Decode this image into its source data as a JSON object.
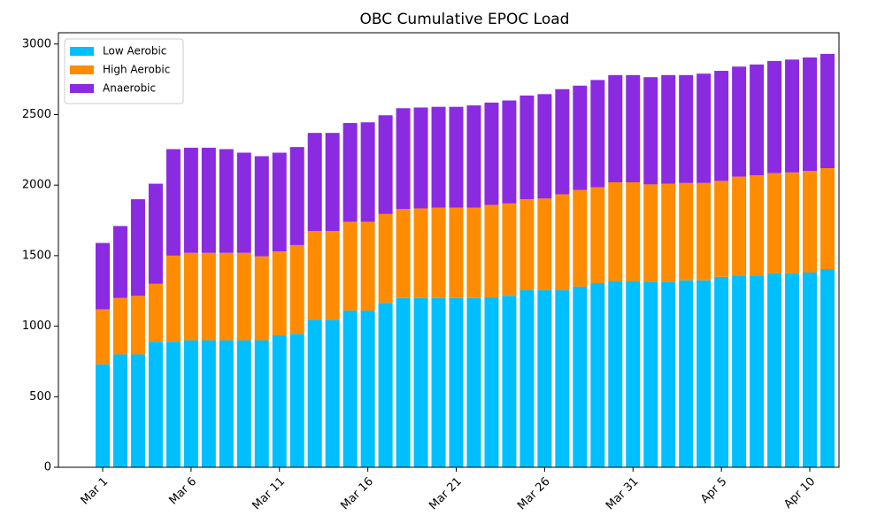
{
  "chart_data": {
    "type": "stacked_bar",
    "title": "OBC Cumulative EPOC Load",
    "categories": [
      "Mar 1",
      null,
      null,
      null,
      null,
      "Mar 6",
      null,
      null,
      null,
      null,
      "Mar 11",
      null,
      null,
      null,
      null,
      "Mar 16",
      null,
      null,
      null,
      null,
      "Mar 21",
      null,
      null,
      null,
      null,
      "Mar 26",
      null,
      null,
      null,
      null,
      "Mar 31",
      null,
      null,
      null,
      null,
      "Apr 5",
      null,
      null,
      null,
      null,
      "Apr 10",
      null
    ],
    "series": [
      {
        "name": "Low Aerobic",
        "color": "#00bfff",
        "values": [
          730,
          800,
          800,
          890,
          890,
          900,
          900,
          900,
          900,
          900,
          935,
          945,
          1045,
          1045,
          1110,
          1110,
          1165,
          1200,
          1200,
          1200,
          1200,
          1200,
          1205,
          1215,
          1255,
          1255,
          1255,
          1280,
          1305,
          1320,
          1320,
          1315,
          1315,
          1325,
          1325,
          1350,
          1355,
          1360,
          1375,
          1375,
          1380,
          1405
        ]
      },
      {
        "name": "High Aerobic",
        "color": "#ff8c00",
        "values": [
          390,
          400,
          415,
          410,
          610,
          620,
          620,
          620,
          620,
          595,
          595,
          630,
          630,
          630,
          630,
          630,
          630,
          630,
          635,
          640,
          640,
          640,
          655,
          655,
          645,
          650,
          680,
          685,
          680,
          700,
          700,
          690,
          695,
          690,
          690,
          680,
          705,
          710,
          710,
          715,
          720,
          715
        ]
      },
      {
        "name": "Anaerobic",
        "color": "#8a2be2",
        "values": [
          470,
          510,
          685,
          710,
          755,
          745,
          745,
          735,
          710,
          710,
          700,
          695,
          695,
          695,
          700,
          705,
          700,
          715,
          715,
          715,
          715,
          725,
          725,
          730,
          735,
          740,
          745,
          740,
          760,
          760,
          760,
          760,
          770,
          765,
          775,
          780,
          780,
          785,
          795,
          800,
          805,
          810
        ]
      }
    ],
    "ylim": [
      0,
      3080
    ],
    "yticks": [
      0,
      500,
      1000,
      1500,
      2000,
      2500,
      3000
    ],
    "legend": "upper left"
  }
}
